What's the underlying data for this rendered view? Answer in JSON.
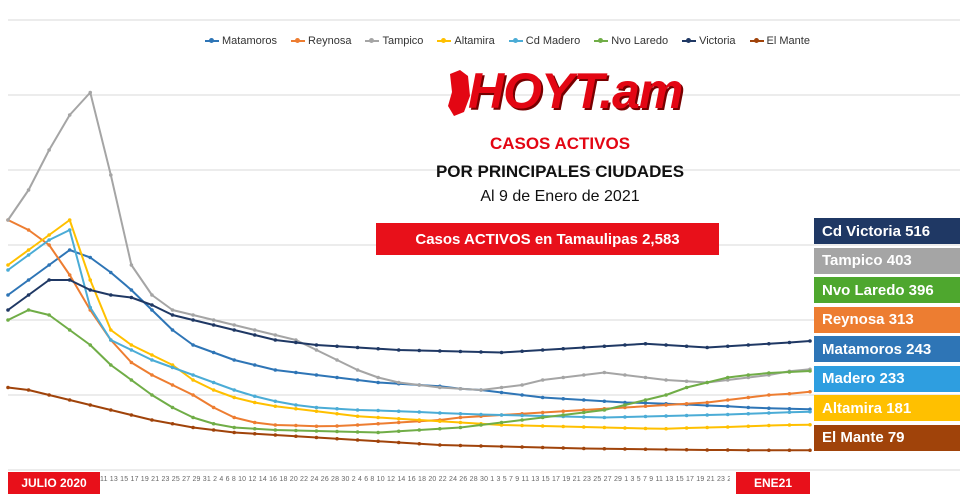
{
  "chart_data": {
    "type": "line",
    "title": "CASOS ACTIVOS",
    "subtitle": "POR PRINCIPALES CIUDADES",
    "date_text": "Al 9 de Enero de 2021",
    "total_label": "Casos ACTIVOS en Tamaulipas  2,583",
    "x_start_label": "JULIO 2020",
    "x_mid_label": "ENE21",
    "tick_labels": "11 13 15 17 19 21 23 25 27 29 31  2  4  6  8 10 12 14 16 18 20 22 24 26 28 30  2  4  6  8 10 12 14 16 18 20 22 24 26 28 30  1  3  5  7  9 11 13 15 17 19 21 23 25 27 29  1  3  5  7  9 11 13 15 17 19 21 23 25 27 29 31  2  4  6  8 10 12 14 16 18 20 22 24 26 28 30  2  4  6  8 10 12 14 16 18 20 22 24 26 28 30  2  4  6  8 10 12 14 16 18 20 22 24 26 28 30  1  3  5  7  9 11 13 15 17 19 21 23 25 27 29 31  2  4  6  8 10 12 14 16 18 20 22 24 26 28 30",
    "ylim": [
      0,
      1800
    ],
    "grid": true,
    "legend_position": "top",
    "series": [
      {
        "name": "Matamoros",
        "color": "#2e75b6",
        "values": [
          700,
          760,
          820,
          880,
          850,
          790,
          720,
          640,
          560,
          500,
          470,
          440,
          420,
          400,
          390,
          380,
          370,
          360,
          350,
          345,
          340,
          335,
          325,
          320,
          310,
          300,
          290,
          285,
          280,
          275,
          270,
          268,
          265,
          262,
          258,
          255,
          250,
          247,
          245,
          243
        ]
      },
      {
        "name": "Reynosa",
        "color": "#ed7d31",
        "values": [
          1000,
          960,
          900,
          780,
          640,
          520,
          430,
          380,
          340,
          300,
          250,
          210,
          190,
          180,
          178,
          175,
          176,
          180,
          185,
          190,
          195,
          200,
          210,
          215,
          220,
          225,
          230,
          235,
          240,
          245,
          250,
          255,
          260,
          265,
          270,
          280,
          290,
          300,
          305,
          313
        ]
      },
      {
        "name": "Tampico",
        "color": "#a5a5a5",
        "values": [
          1000,
          1120,
          1280,
          1420,
          1510,
          1180,
          820,
          700,
          640,
          620,
          600,
          580,
          560,
          540,
          520,
          480,
          440,
          400,
          370,
          350,
          340,
          330,
          325,
          320,
          330,
          340,
          360,
          370,
          380,
          390,
          380,
          370,
          360,
          355,
          350,
          360,
          370,
          380,
          395,
          403
        ]
      },
      {
        "name": "Altamira",
        "color": "#ffc000",
        "values": [
          820,
          880,
          940,
          1000,
          760,
          560,
          500,
          460,
          420,
          360,
          320,
          290,
          270,
          255,
          245,
          235,
          225,
          215,
          210,
          205,
          200,
          195,
          190,
          185,
          180,
          178,
          176,
          174,
          172,
          170,
          168,
          166,
          165,
          168,
          170,
          172,
          175,
          178,
          180,
          181
        ]
      },
      {
        "name": "Cd Madero",
        "color": "#4bacd6",
        "values": [
          800,
          860,
          920,
          960,
          650,
          520,
          480,
          440,
          410,
          380,
          350,
          320,
          295,
          275,
          260,
          250,
          245,
          240,
          238,
          235,
          232,
          228,
          225,
          222,
          220,
          218,
          216,
          214,
          212,
          210,
          212,
          214,
          216,
          218,
          220,
          222,
          225,
          228,
          231,
          233
        ]
      },
      {
        "name": "Nvo Laredo",
        "color": "#70ad47",
        "values": [
          600,
          640,
          620,
          560,
          500,
          420,
          360,
          300,
          250,
          210,
          185,
          170,
          165,
          160,
          158,
          156,
          154,
          152,
          150,
          155,
          160,
          165,
          170,
          180,
          190,
          200,
          210,
          220,
          230,
          240,
          260,
          280,
          300,
          330,
          350,
          370,
          380,
          388,
          392,
          396
        ]
      },
      {
        "name": "Victoria",
        "color": "#1f3864",
        "values": [
          640,
          700,
          760,
          760,
          720,
          700,
          690,
          660,
          620,
          600,
          580,
          560,
          540,
          520,
          510,
          500,
          495,
          490,
          485,
          480,
          478,
          476,
          474,
          472,
          470,
          475,
          480,
          485,
          490,
          495,
          500,
          505,
          500,
          495,
          490,
          495,
          500,
          505,
          510,
          516
        ]
      },
      {
        "name": "El Mante",
        "color": "#a0430a",
        "values": [
          330,
          320,
          300,
          280,
          260,
          240,
          220,
          200,
          185,
          170,
          160,
          150,
          145,
          140,
          135,
          130,
          125,
          120,
          115,
          110,
          105,
          100,
          98,
          96,
          94,
          92,
          90,
          88,
          86,
          85,
          84,
          83,
          82,
          81,
          80,
          80,
          79,
          79,
          79,
          79
        ]
      }
    ]
  },
  "header": {
    "logo_text": "HOYT.am",
    "title": "CASOS ACTIVOS",
    "subtitle": "POR PRINCIPALES CIUDADES",
    "date": "Al 9 de Enero de 2021",
    "total": "Casos ACTIVOS en Tamaulipas  2,583"
  },
  "city_labels": [
    {
      "text": "Cd Victoria 516",
      "color": "#1f3864"
    },
    {
      "text": "Tampico 403",
      "color": "#a5a5a5"
    },
    {
      "text": "Nvo Laredo 396",
      "color": "#4ea72e"
    },
    {
      "text": "Reynosa 313",
      "color": "#ed7d31"
    },
    {
      "text": "Matamoros 243",
      "color": "#2e75b6"
    },
    {
      "text": "Madero 233",
      "color": "#2e9ee0"
    },
    {
      "text": "Altamira 181",
      "color": "#ffc000"
    },
    {
      "text": "El Mante 79",
      "color": "#a0430a"
    }
  ]
}
